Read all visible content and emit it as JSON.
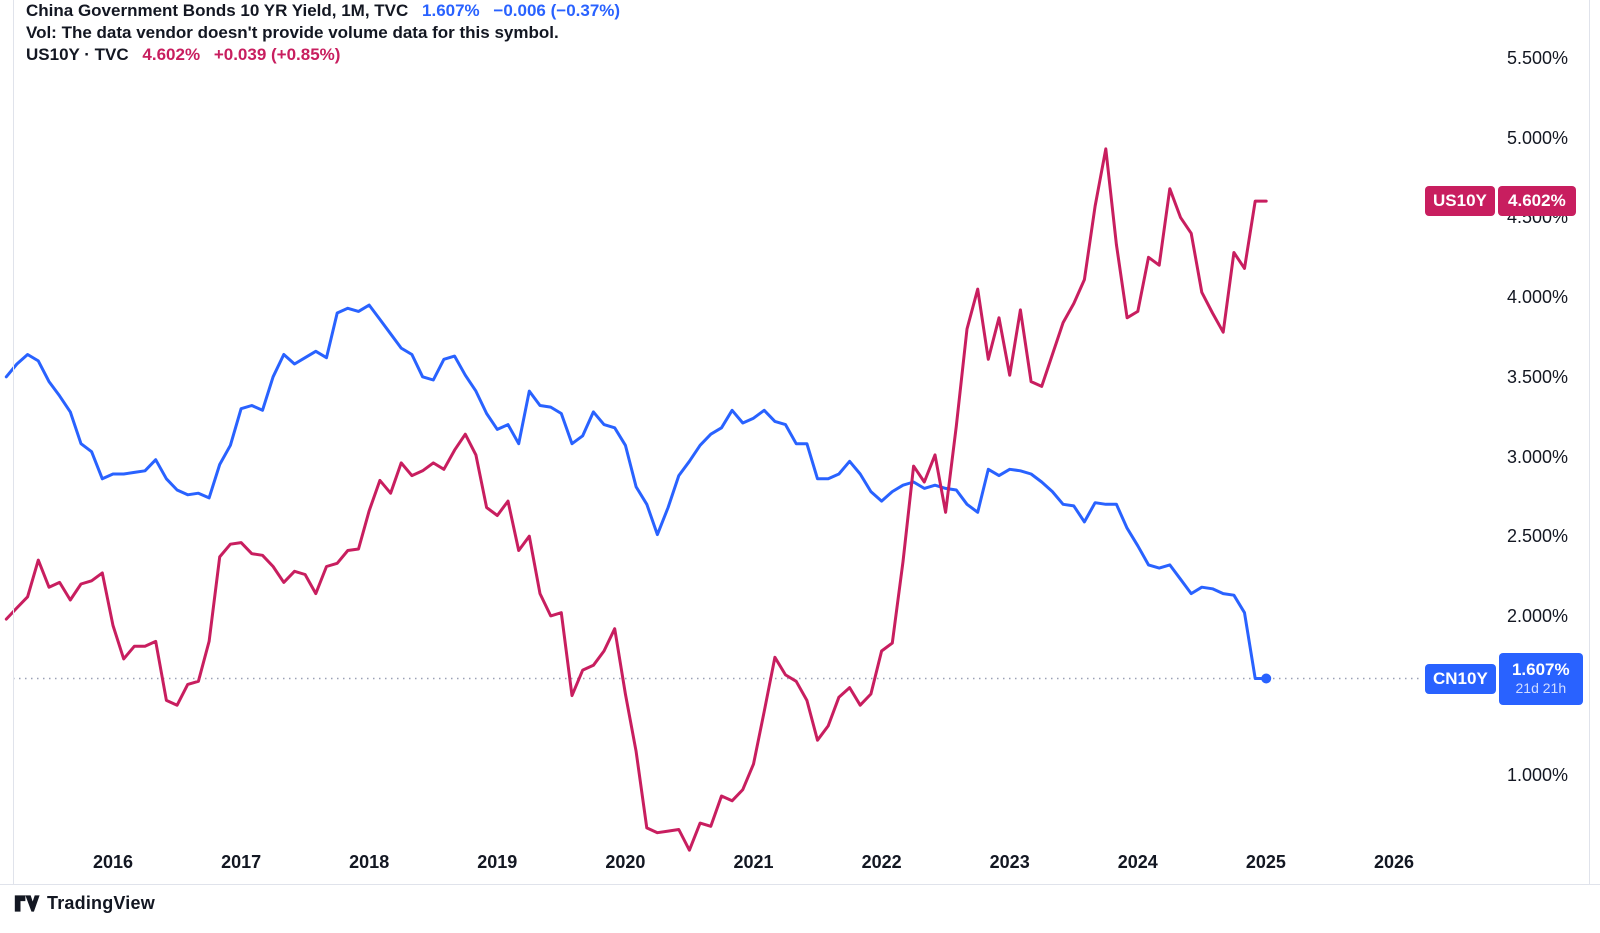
{
  "header": {
    "main_series": {
      "title": "China Government Bonds 10 YR Yield, 1M, TVC",
      "last_value": "1.607%",
      "change": "−0.006 (−0.37%)"
    },
    "volume_notice": "Vol: The data vendor doesn't provide volume data for this symbol.",
    "compare_series": {
      "title": "US10Y · TVC",
      "last_value": "4.602%",
      "change": "+0.039 (+0.85%)"
    }
  },
  "chart_data": {
    "type": "line",
    "title": "China Government Bonds 10 YR Yield (CN10Y) vs US10Y, monthly closes",
    "interval": "1M",
    "x_axis": {
      "years": [
        "2016",
        "2017",
        "2018",
        "2019",
        "2020",
        "2021",
        "2022",
        "2023",
        "2024",
        "2025",
        "2026"
      ]
    },
    "y_axis": {
      "unit": "%",
      "ticks": [
        {
          "label": "5.500%",
          "value": 5.5
        },
        {
          "label": "5.000%",
          "value": 5.0
        },
        {
          "label": "4.500%",
          "value": 4.5
        },
        {
          "label": "4.000%",
          "value": 4.0
        },
        {
          "label": "3.500%",
          "value": 3.5
        },
        {
          "label": "3.000%",
          "value": 3.0
        },
        {
          "label": "2.500%",
          "value": 2.5
        },
        {
          "label": "2.000%",
          "value": 2.0
        },
        {
          "label": "1.000%",
          "value": 1.0
        }
      ]
    },
    "series": [
      {
        "name": "CN10Y",
        "color": "#2962FF",
        "start": "2015-03",
        "values": [
          3.5,
          3.58,
          3.64,
          3.6,
          3.47,
          3.38,
          3.28,
          3.08,
          3.03,
          2.86,
          2.89,
          2.89,
          2.9,
          2.91,
          2.98,
          2.86,
          2.79,
          2.76,
          2.77,
          2.74,
          2.95,
          3.07,
          3.3,
          3.32,
          3.29,
          3.5,
          3.64,
          3.58,
          3.62,
          3.66,
          3.62,
          3.9,
          3.93,
          3.91,
          3.95,
          3.86,
          3.77,
          3.68,
          3.64,
          3.5,
          3.48,
          3.61,
          3.63,
          3.51,
          3.41,
          3.27,
          3.17,
          3.2,
          3.08,
          3.41,
          3.32,
          3.31,
          3.27,
          3.08,
          3.13,
          3.28,
          3.2,
          3.18,
          3.07,
          2.81,
          2.7,
          2.51,
          2.68,
          2.88,
          2.97,
          3.07,
          3.14,
          3.18,
          3.29,
          3.21,
          3.24,
          3.29,
          3.22,
          3.2,
          3.08,
          3.08,
          2.86,
          2.86,
          2.89,
          2.97,
          2.89,
          2.78,
          2.72,
          2.78,
          2.82,
          2.84,
          2.8,
          2.82,
          2.8,
          2.79,
          2.7,
          2.65,
          2.92,
          2.88,
          2.92,
          2.91,
          2.89,
          2.84,
          2.78,
          2.7,
          2.69,
          2.59,
          2.71,
          2.7,
          2.7,
          2.55,
          2.44,
          2.32,
          2.3,
          2.32,
          2.23,
          2.14,
          2.18,
          2.17,
          2.14,
          2.13,
          2.02,
          1.607
        ]
      },
      {
        "name": "US10Y",
        "color": "#C81E5F",
        "start": "2015-03",
        "values": [
          1.98,
          2.05,
          2.12,
          2.35,
          2.18,
          2.21,
          2.1,
          2.2,
          2.22,
          2.27,
          1.94,
          1.73,
          1.81,
          1.81,
          1.84,
          1.47,
          1.44,
          1.57,
          1.59,
          1.84,
          2.37,
          2.45,
          2.46,
          2.39,
          2.38,
          2.31,
          2.21,
          2.28,
          2.26,
          2.14,
          2.31,
          2.33,
          2.41,
          2.42,
          2.66,
          2.85,
          2.77,
          2.96,
          2.88,
          2.91,
          2.96,
          2.92,
          3.04,
          3.14,
          3.01,
          2.68,
          2.63,
          2.72,
          2.41,
          2.5,
          2.14,
          2.0,
          2.02,
          1.5,
          1.66,
          1.69,
          1.78,
          1.92,
          1.51,
          1.15,
          0.67,
          0.64,
          0.65,
          0.66,
          0.53,
          0.7,
          0.68,
          0.87,
          0.84,
          0.91,
          1.07,
          1.4,
          1.74,
          1.63,
          1.59,
          1.47,
          1.22,
          1.31,
          1.49,
          1.55,
          1.44,
          1.51,
          1.78,
          1.83,
          2.34,
          2.94,
          2.84,
          3.01,
          2.65,
          3.19,
          3.8,
          4.05,
          3.61,
          3.87,
          3.51,
          3.92,
          3.47,
          3.44,
          3.64,
          3.84,
          3.96,
          4.11,
          4.57,
          4.93,
          4.33,
          3.87,
          3.91,
          4.25,
          4.2,
          4.68,
          4.5,
          4.4,
          4.03,
          3.9,
          3.78,
          4.28,
          4.18,
          4.602
        ]
      }
    ],
    "price_line": {
      "series": "CN10Y",
      "value": 1.607,
      "style": "dotted",
      "color": "#9aa0b5"
    },
    "price_labels": [
      {
        "symbol": "US10Y",
        "value": "4.602%",
        "value_num": 4.602,
        "color": "#C81E5F"
      },
      {
        "symbol": "CN10Y",
        "value": "1.607%",
        "value_num": 1.607,
        "countdown": "21d 21h",
        "color": "#2962FF"
      }
    ]
  },
  "footer": {
    "logo_text": "TradingView"
  }
}
